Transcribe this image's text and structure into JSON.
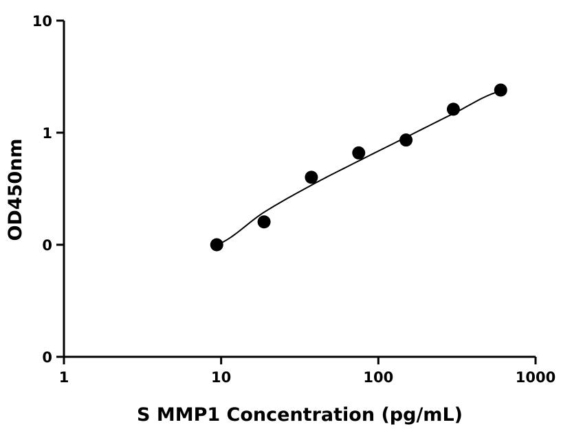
{
  "chart_data": {
    "type": "scatter",
    "title": "",
    "xlabel": "S MMP1 Concentration (pg/mL)",
    "ylabel": "OD450nm",
    "x_scale": "log",
    "y_scale": "log",
    "xlim": [
      1,
      1000
    ],
    "ylim": [
      0.01,
      10
    ],
    "x_ticks": [
      1,
      10,
      100,
      1000
    ],
    "x_tick_labels": [
      "1",
      "10",
      "100",
      "1000"
    ],
    "y_ticks": [
      0.01,
      0.1,
      1,
      10
    ],
    "y_tick_labels": [
      "0",
      "0",
      "1",
      "10"
    ],
    "grid": false,
    "legend": "none",
    "series": [
      {
        "x": [
          9.375,
          18.75,
          37.5,
          75,
          150,
          300,
          600
        ],
        "y": [
          0.1,
          0.16,
          0.4,
          0.66,
          0.86,
          1.62,
          2.4
        ],
        "marker_color": "#000000",
        "fit_line": true
      }
    ],
    "fit_curve": {
      "x": [
        9.375,
        18.75,
        37.5,
        75,
        150,
        300,
        600
      ],
      "y": [
        0.1,
        0.195,
        0.34,
        0.56,
        0.91,
        1.48,
        2.35
      ]
    }
  }
}
